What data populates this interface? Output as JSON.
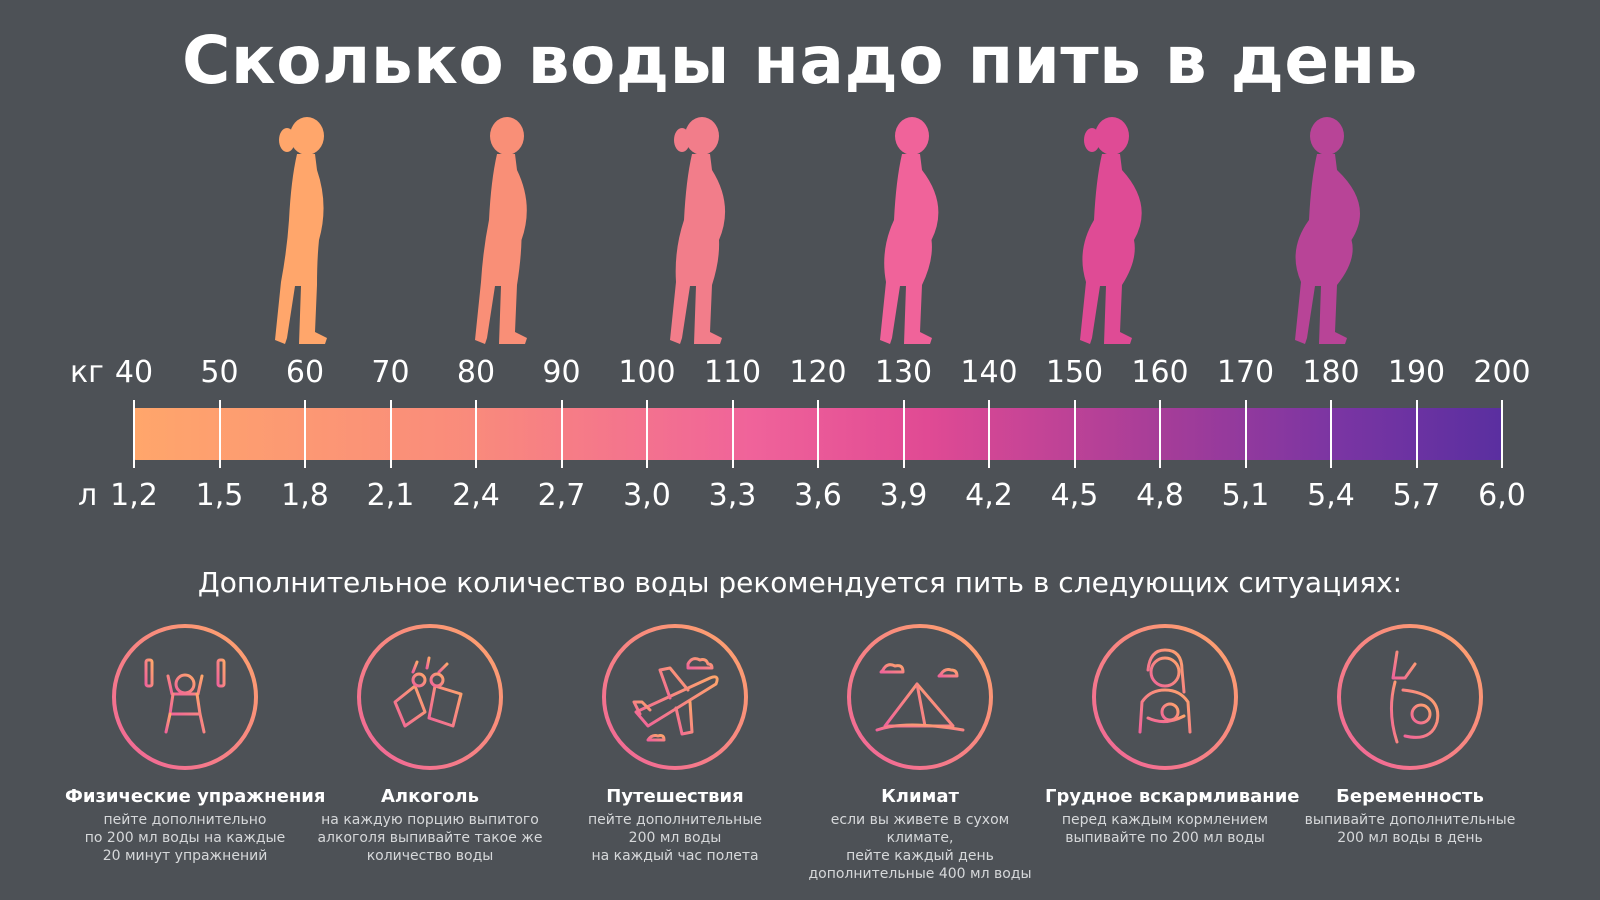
{
  "title": "Сколько воды надо пить в день",
  "scale": {
    "weight_unit": "кг",
    "water_unit": "л",
    "weights": [
      "40",
      "50",
      "60",
      "70",
      "80",
      "90",
      "100",
      "110",
      "120",
      "130",
      "140",
      "150",
      "160",
      "170",
      "180",
      "190",
      "200"
    ],
    "liters": [
      "1,2",
      "1,5",
      "1,8",
      "2,1",
      "2,4",
      "2,7",
      "3,0",
      "3,3",
      "3,6",
      "3,9",
      "4,2",
      "4,5",
      "4,8",
      "5,1",
      "5,4",
      "5,7",
      "6,0"
    ]
  },
  "figures": [
    {
      "icon": "woman-silhouette-icon",
      "color": "#ffa66b"
    },
    {
      "icon": "man-silhouette-icon",
      "color": "#f98f77"
    },
    {
      "icon": "woman-silhouette-icon",
      "color": "#f27d8a"
    },
    {
      "icon": "man-silhouette-icon",
      "color": "#f0639a"
    },
    {
      "icon": "woman-silhouette-icon",
      "color": "#df4b95"
    },
    {
      "icon": "man-silhouette-icon",
      "color": "#b84497"
    }
  ],
  "subtitle": "Дополнительное количество воды рекомендуется пить в следующих ситуациях:",
  "situations": [
    {
      "icon": "weightlifting-icon",
      "title": "Физические упражнения",
      "desc": "пейте дополнительно\nпо 200 мл воды на каждые\n20 минут упражнений"
    },
    {
      "icon": "beer-toast-icon",
      "title": "Алкоголь",
      "desc": "на каждую порцию выпитого\nалкоголя выпивайте такое же\nколичество воды"
    },
    {
      "icon": "airplane-icon",
      "title": "Путешествия",
      "desc": "пейте дополнительные\n200 мл воды\nна каждый час полета"
    },
    {
      "icon": "desert-pyramid-icon",
      "title": "Климат",
      "desc": "если вы живете в сухом климате,\nпейте каждый день\nдополнительные 400 мл воды"
    },
    {
      "icon": "breastfeeding-icon",
      "title": "Грудное вскармливание",
      "desc": "перед каждым кормлением\nвыпивайте по 200 мл воды"
    },
    {
      "icon": "pregnancy-icon",
      "title": "Беременность",
      "desc": "выпивайте дополнительные\n200 мл воды в день"
    }
  ],
  "colors": {
    "background": "#4d5156",
    "ring_start": "#f0639a",
    "ring_end": "#ffa66b"
  }
}
